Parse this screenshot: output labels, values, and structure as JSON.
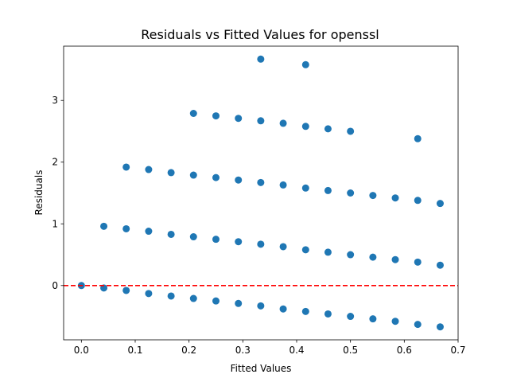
{
  "chart_data": {
    "type": "scatter",
    "title": "Residuals vs Fitted Values for openssl",
    "xlabel": "Fitted Values",
    "ylabel": "Residuals",
    "xlim": [
      -0.033,
      0.7
    ],
    "ylim": [
      -0.88,
      3.88
    ],
    "xticks": [
      0.0,
      0.1,
      0.2,
      0.3,
      0.4,
      0.5,
      0.6,
      0.7
    ],
    "xtick_labels": [
      "0.0",
      "0.1",
      "0.2",
      "0.3",
      "0.4",
      "0.5",
      "0.6",
      "0.7"
    ],
    "yticks": [
      0,
      1,
      2,
      3
    ],
    "ytick_labels": [
      "0",
      "1",
      "2",
      "3"
    ],
    "grid": false,
    "marker_color": "#1f77b4",
    "reference_line": {
      "y": 0,
      "style": "dashed",
      "color": "#ff0000"
    },
    "points": [
      {
        "x": 0.0,
        "y": 0.0
      },
      {
        "x": 0.0417,
        "y": -0.04
      },
      {
        "x": 0.0833,
        "y": -0.08
      },
      {
        "x": 0.125,
        "y": -0.13
      },
      {
        "x": 0.1667,
        "y": -0.17
      },
      {
        "x": 0.2083,
        "y": -0.21
      },
      {
        "x": 0.25,
        "y": -0.25
      },
      {
        "x": 0.2917,
        "y": -0.29
      },
      {
        "x": 0.3333,
        "y": -0.33
      },
      {
        "x": 0.375,
        "y": -0.38
      },
      {
        "x": 0.4167,
        "y": -0.42
      },
      {
        "x": 0.4583,
        "y": -0.46
      },
      {
        "x": 0.5,
        "y": -0.5
      },
      {
        "x": 0.5417,
        "y": -0.54
      },
      {
        "x": 0.5833,
        "y": -0.58
      },
      {
        "x": 0.625,
        "y": -0.63
      },
      {
        "x": 0.6667,
        "y": -0.67
      },
      {
        "x": 0.0417,
        "y": 0.96
      },
      {
        "x": 0.0833,
        "y": 0.92
      },
      {
        "x": 0.125,
        "y": 0.88
      },
      {
        "x": 0.1667,
        "y": 0.83
      },
      {
        "x": 0.2083,
        "y": 0.79
      },
      {
        "x": 0.25,
        "y": 0.75
      },
      {
        "x": 0.2917,
        "y": 0.71
      },
      {
        "x": 0.3333,
        "y": 0.67
      },
      {
        "x": 0.375,
        "y": 0.63
      },
      {
        "x": 0.4167,
        "y": 0.58
      },
      {
        "x": 0.4583,
        "y": 0.54
      },
      {
        "x": 0.5,
        "y": 0.5
      },
      {
        "x": 0.5417,
        "y": 0.46
      },
      {
        "x": 0.5833,
        "y": 0.42
      },
      {
        "x": 0.625,
        "y": 0.38
      },
      {
        "x": 0.6667,
        "y": 0.33
      },
      {
        "x": 0.0833,
        "y": 1.92
      },
      {
        "x": 0.125,
        "y": 1.88
      },
      {
        "x": 0.1667,
        "y": 1.83
      },
      {
        "x": 0.2083,
        "y": 1.79
      },
      {
        "x": 0.25,
        "y": 1.75
      },
      {
        "x": 0.2917,
        "y": 1.71
      },
      {
        "x": 0.3333,
        "y": 1.67
      },
      {
        "x": 0.375,
        "y": 1.63
      },
      {
        "x": 0.4167,
        "y": 1.58
      },
      {
        "x": 0.4583,
        "y": 1.54
      },
      {
        "x": 0.5,
        "y": 1.5
      },
      {
        "x": 0.5417,
        "y": 1.46
      },
      {
        "x": 0.5833,
        "y": 1.42
      },
      {
        "x": 0.625,
        "y": 1.38
      },
      {
        "x": 0.6667,
        "y": 1.33
      },
      {
        "x": 0.2083,
        "y": 2.79
      },
      {
        "x": 0.25,
        "y": 2.75
      },
      {
        "x": 0.2917,
        "y": 2.71
      },
      {
        "x": 0.3333,
        "y": 2.67
      },
      {
        "x": 0.375,
        "y": 2.63
      },
      {
        "x": 0.4167,
        "y": 2.58
      },
      {
        "x": 0.4583,
        "y": 2.54
      },
      {
        "x": 0.5,
        "y": 2.5
      },
      {
        "x": 0.625,
        "y": 2.38
      },
      {
        "x": 0.3333,
        "y": 3.67
      },
      {
        "x": 0.4167,
        "y": 3.58
      }
    ]
  }
}
